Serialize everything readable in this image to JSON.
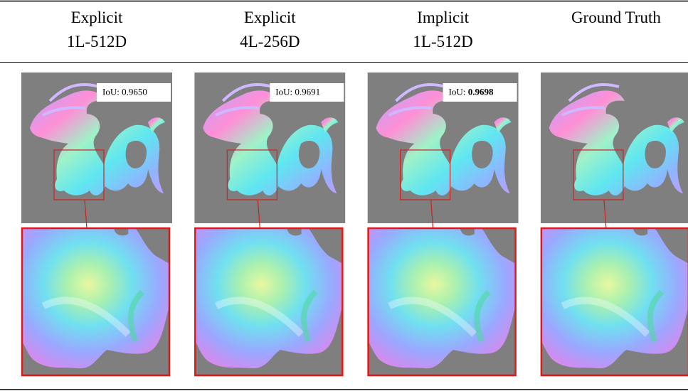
{
  "columns": [
    {
      "header": [
        "Explicit",
        "1L-512D"
      ],
      "iou": {
        "label": "IoU:",
        "value": "0.9650",
        "bold": false
      }
    },
    {
      "header": [
        "Explicit",
        "4L-256D"
      ],
      "iou": {
        "label": "IoU:",
        "value": "0.9691",
        "bold": false
      }
    },
    {
      "header": [
        "Implicit",
        "1L-512D"
      ],
      "iou": {
        "label": "IoU:",
        "value": "0.9698",
        "bold": true
      }
    },
    {
      "header": [
        "Ground Truth"
      ]
    }
  ]
}
